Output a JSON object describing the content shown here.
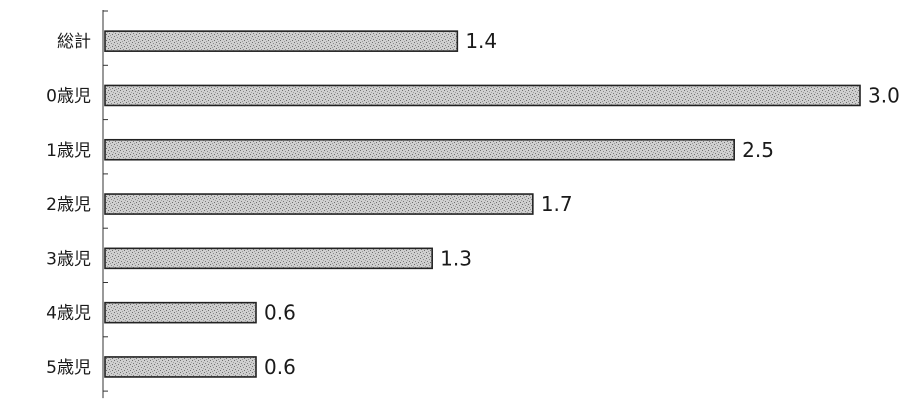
{
  "chart_data": {
    "type": "bar",
    "orientation": "horizontal",
    "categories": [
      "総計",
      "0歳児",
      "1歳児",
      "2歳児",
      "3歳児",
      "4歳児",
      "5歳児"
    ],
    "values": [
      1.4,
      3.0,
      2.5,
      1.7,
      1.3,
      0.6,
      0.6
    ],
    "value_labels": [
      "1.4",
      "3.0",
      "2.5",
      "1.7",
      "1.3",
      "0.6",
      "0.6"
    ],
    "title": "",
    "xlabel": "",
    "ylabel": "",
    "xlim": [
      0,
      3.0
    ],
    "grid": false,
    "legend": "none",
    "bar_fill_color": "#c6c6c6",
    "bar_pattern": "speckled",
    "bar_edge_color": "#222222"
  }
}
